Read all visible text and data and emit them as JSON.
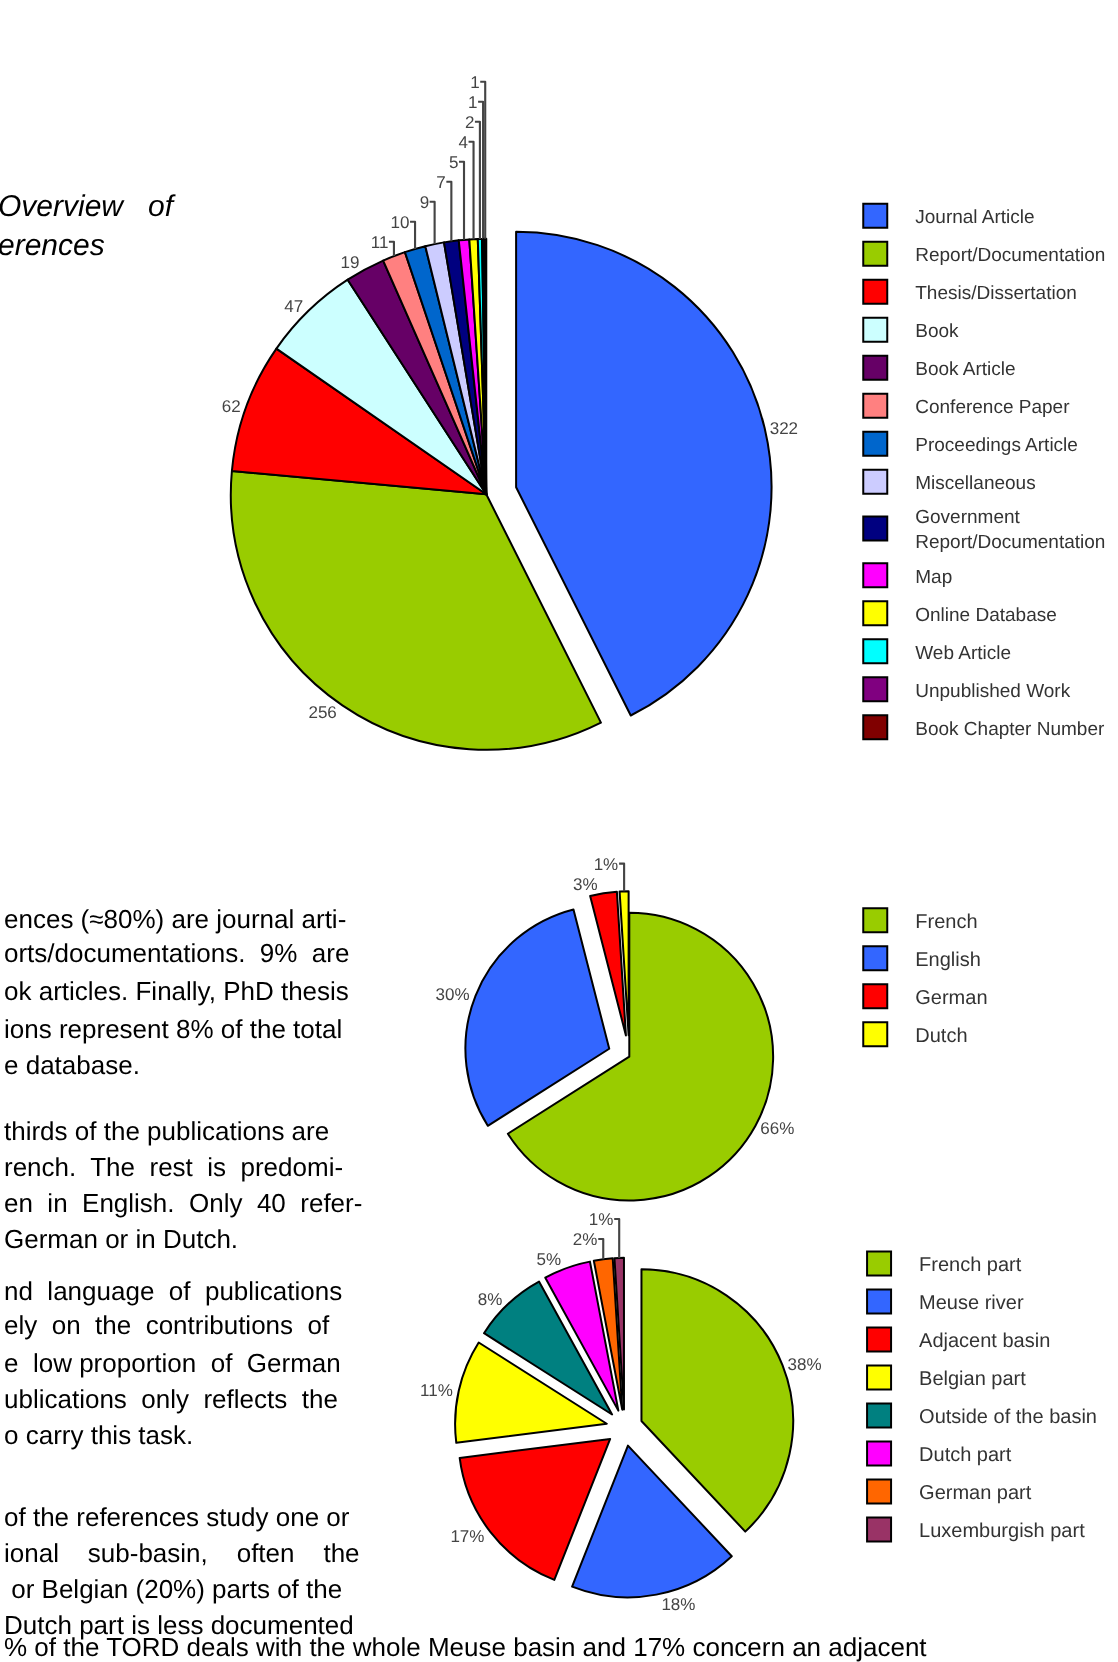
{
  "chart_data": [
    {
      "type": "pie",
      "categories": [
        "Journal Article",
        "Report/Documentation",
        "Thesis/Dissertation",
        "Book",
        "Book Article",
        "Conference Paper",
        "Proceedings Article",
        "Miscellaneous",
        "Government Report/Documentation",
        "Map",
        "Online Database",
        "Web Article",
        "Unpublished Work",
        "Book Chapter Number"
      ],
      "values": [
        322,
        256,
        62,
        47,
        19,
        11,
        10,
        9,
        7,
        5,
        4,
        2,
        1,
        1
      ],
      "colors": [
        "#3366ff",
        "#99cc00",
        "#ff0000",
        "#ccffff",
        "#660066",
        "#ff8080",
        "#0066cc",
        "#ccccff",
        "#000080",
        "#ff00ff",
        "#ffff00",
        "#00ffff",
        "#800080",
        "#800000"
      ],
      "data_labels": true,
      "legend": "right"
    },
    {
      "type": "pie",
      "categories": [
        "French",
        "English",
        "German",
        "Dutch"
      ],
      "values": [
        66,
        30,
        3,
        1
      ],
      "colors": [
        "#99cc00",
        "#3366ff",
        "#ff0000",
        "#ffff00"
      ],
      "value_labels": [
        "66%",
        "30%",
        "3%",
        "1%"
      ],
      "legend": "right"
    },
    {
      "type": "pie",
      "categories": [
        "French part",
        "Meuse river",
        "Adjacent basin",
        "Belgian part",
        "Outside of the basin",
        "Dutch part",
        "German part",
        "Luxemburgish part"
      ],
      "values": [
        38,
        18,
        17,
        11,
        8,
        5,
        2,
        1
      ],
      "colors": [
        "#99cc00",
        "#3366ff",
        "#ff0000",
        "#ffff00",
        "#008080",
        "#ff00ff",
        "#ff6600",
        "#993366"
      ],
      "value_labels": [
        "38%",
        "18%",
        "17%",
        "11%",
        "8%",
        "5%",
        "2%",
        "1%"
      ],
      "legend": "right"
    },
    {
      "type": "other",
      "title": "Overview   of\nerences",
      "annotations": [
        "ences (≈80%) are journal arti-",
        "orts/documentations.  9%  are",
        "ok articles. Finally, PhD thesis",
        "ions represent 8% of the total",
        "e database.",
        "thirds of the publications are",
        "rench.  The  rest  is  predomi-",
        "en  in  English.  Only  40  refer-",
        "German or in Dutch.",
        "nd  language  of  publications",
        "ely  on  the  contributions  of",
        "e  low proportion  of  German",
        "ublications  only  reflects  the",
        "o carry this task.",
        "of the references study one or",
        "ional    sub-basin,    often    the",
        " or Belgian (20%) parts of the",
        "Dutch part is less documented",
        "% of the TORD deals with the whole Meuse basin and 17% concern an adjacent"
      ]
    }
  ]
}
